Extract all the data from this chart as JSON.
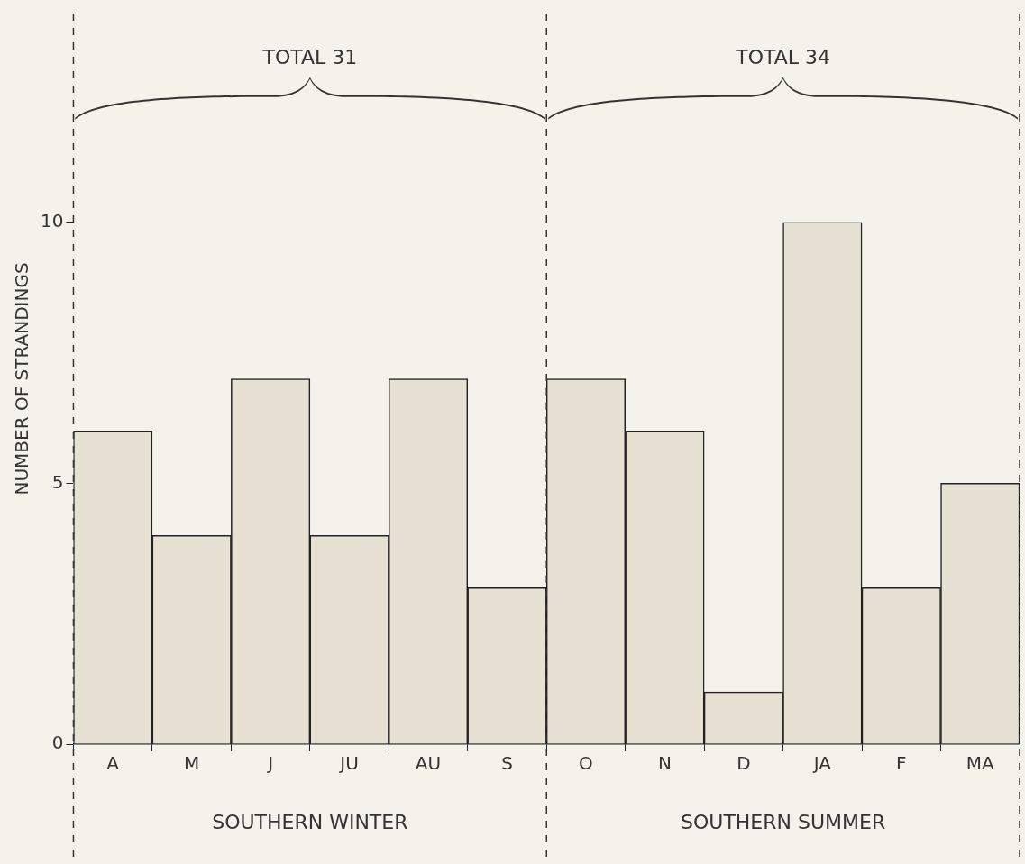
{
  "chart_data": {
    "type": "bar",
    "ylabel": "NUMBER OF STRANDINGS",
    "categories": [
      "A",
      "M",
      "J",
      "JU",
      "AU",
      "S",
      "O",
      "N",
      "D",
      "JA",
      "F",
      "MA"
    ],
    "values": [
      6,
      4,
      7,
      4,
      7,
      3,
      7,
      6,
      1,
      10,
      3,
      5
    ],
    "color": "#e6e1d2",
    "ylim": [
      0,
      14
    ],
    "yticks": [
      0,
      5,
      10
    ],
    "grid": false,
    "legend": false,
    "annotations": [
      "TOTAL 31",
      "TOTAL 34",
      "SOUTHERN WINTER",
      "SOUTHERN SUMMER"
    ]
  }
}
